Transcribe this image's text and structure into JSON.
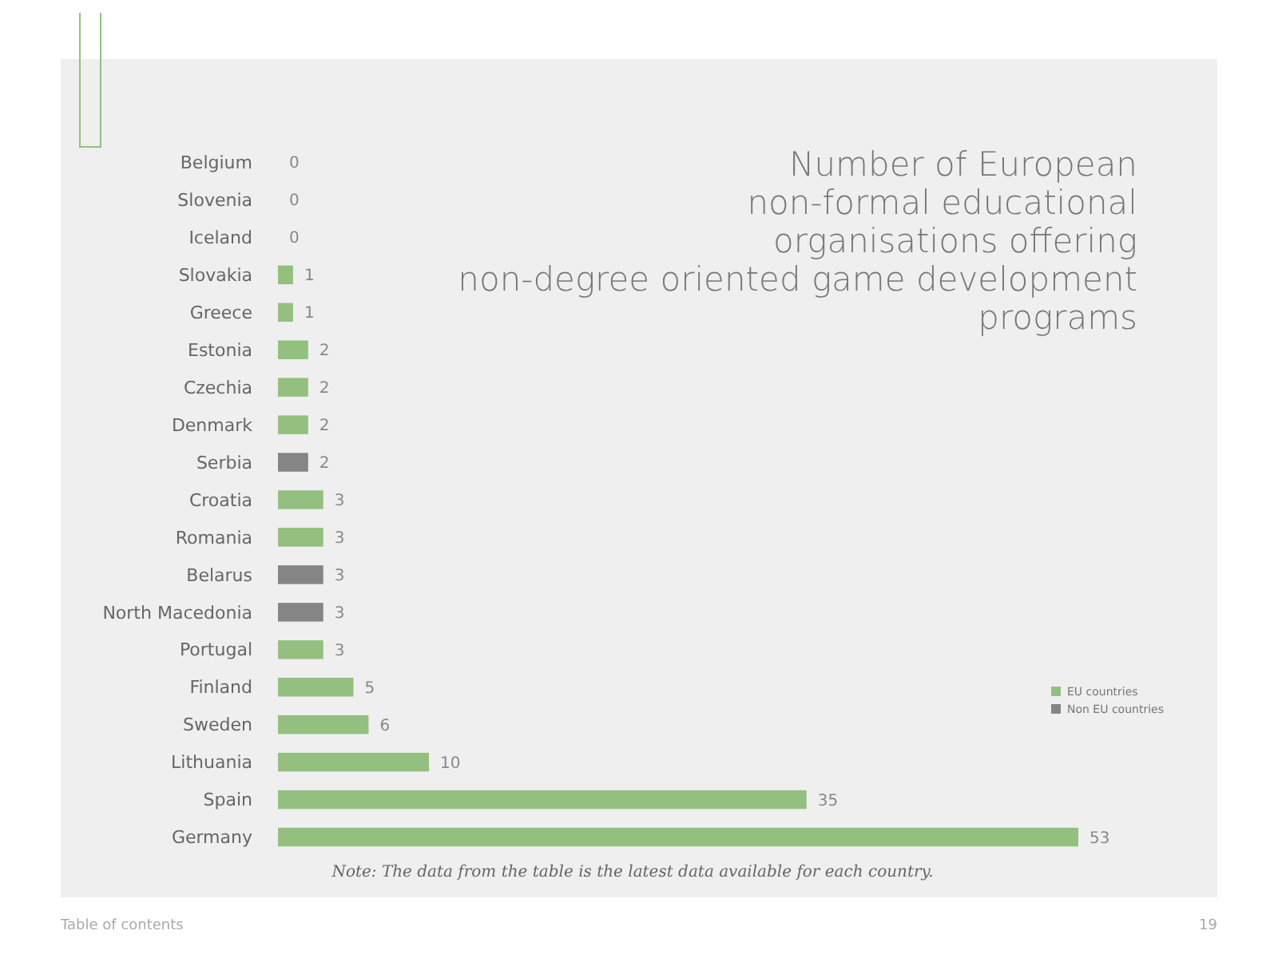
{
  "chart_data": {
    "type": "bar",
    "orientation": "horizontal",
    "title": "Number of European non-formal educational organisations offering non-degree oriented game development programs",
    "categories": [
      "Belgium",
      "Slovenia",
      "Iceland",
      "Slovakia",
      "Greece",
      "Estonia",
      "Czechia",
      "Denmark",
      "Serbia",
      "Croatia",
      "Romania",
      "Belarus",
      "North Macedonia",
      "Portugal",
      "Finland",
      "Sweden",
      "Lithuania",
      "Spain",
      "Germany"
    ],
    "series": [
      {
        "name": "EU countries",
        "color": "#93c07e",
        "values": [
          0,
          0,
          null,
          1,
          1,
          2,
          2,
          2,
          null,
          3,
          3,
          null,
          null,
          3,
          5,
          6,
          10,
          35,
          53
        ]
      },
      {
        "name": "Non EU countries",
        "color": "#858585",
        "values": [
          null,
          null,
          0,
          null,
          null,
          null,
          null,
          null,
          2,
          null,
          null,
          3,
          3,
          null,
          null,
          null,
          null,
          null,
          null
        ]
      }
    ],
    "data_labels": true,
    "legend": "right",
    "annotations": [
      "Note: The data from the table is the latest data available for each country.",
      "Table of contents",
      "19"
    ]
  }
}
